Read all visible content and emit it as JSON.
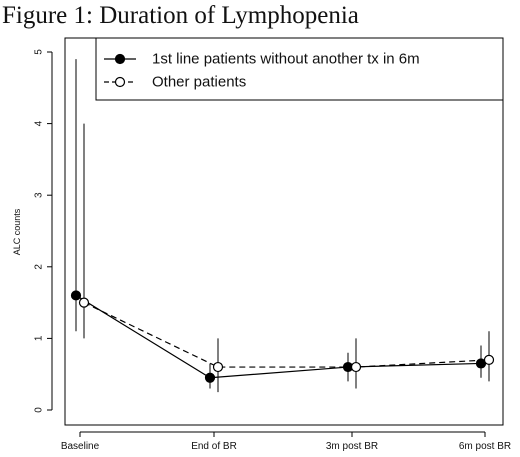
{
  "figure_title": "Figure 1: Duration of Lymphopenia",
  "chart_data": {
    "type": "line",
    "title": "",
    "xlabel": "",
    "ylabel": "ALC counts",
    "categories": [
      "Baseline",
      "End of BR",
      "3m post BR",
      "6m post BR"
    ],
    "ylim": [
      0,
      5.2
    ],
    "yticks": [
      0,
      1,
      2,
      3,
      4,
      5
    ],
    "grid": false,
    "legend_position": "top-right",
    "series": [
      {
        "name": "1st line patients without another tx in 6m",
        "marker": "filled-circle",
        "line_style": "solid",
        "color": "#000000",
        "values": [
          1.6,
          0.45,
          0.6,
          0.65
        ],
        "error_low": [
          1.1,
          0.3,
          0.4,
          0.45
        ],
        "error_high": [
          4.9,
          0.65,
          0.8,
          0.9
        ]
      },
      {
        "name": "Other patients",
        "marker": "open-circle",
        "line_style": "dashed",
        "color": "#000000",
        "values": [
          1.5,
          0.6,
          0.6,
          0.7
        ],
        "error_low": [
          1.0,
          0.25,
          0.3,
          0.4
        ],
        "error_high": [
          4.0,
          1.0,
          1.0,
          1.1
        ]
      }
    ]
  }
}
